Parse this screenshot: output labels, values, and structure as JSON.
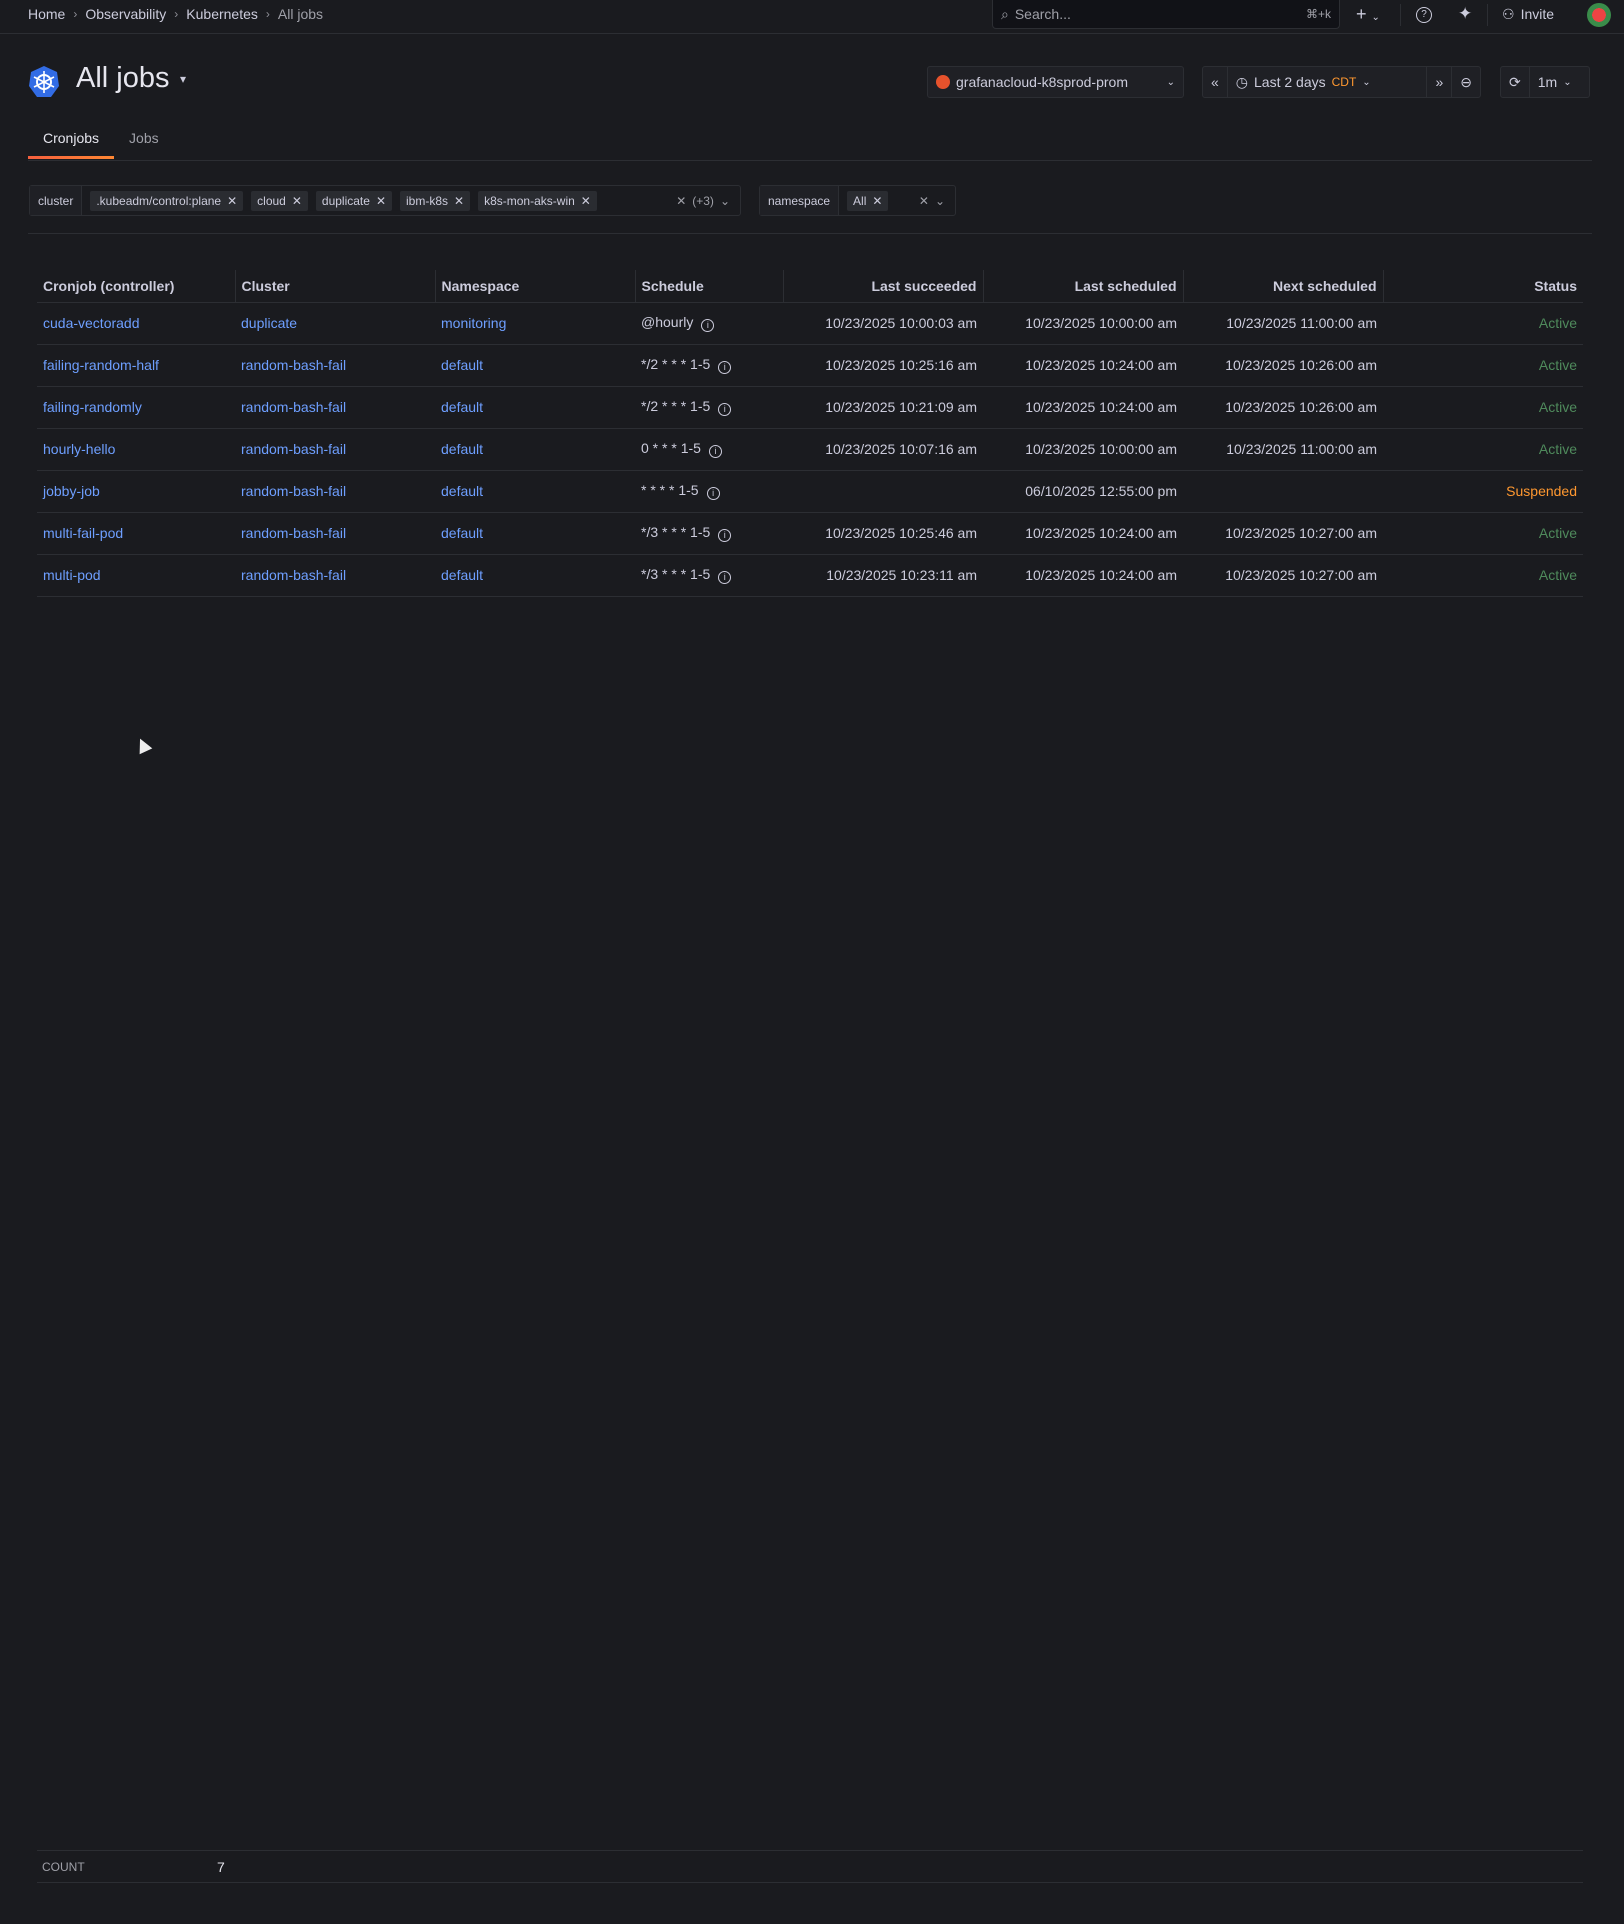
{
  "breadcrumb": [
    "Home",
    "Observability",
    "Kubernetes",
    "All jobs"
  ],
  "search": {
    "placeholder": "Search...",
    "shortcut": "⌘+k"
  },
  "topbar": {
    "add_label": "+",
    "invite_label": "Invite"
  },
  "page": {
    "title": "All jobs"
  },
  "datasource": "grafanacloud-k8sprod-prom",
  "time": {
    "range": "Last 2 days",
    "timezone": "CDT",
    "refresh": "1m"
  },
  "tabs": [
    {
      "label": "Cronjobs",
      "active": true
    },
    {
      "label": "Jobs",
      "active": false
    }
  ],
  "filters": {
    "cluster": {
      "label": "cluster",
      "values": [
        ".kubeadm/control:plane",
        "cloud",
        "duplicate",
        "ibm-k8s",
        "k8s-mon-aks-win"
      ],
      "more": "(+3)"
    },
    "namespace": {
      "label": "namespace",
      "values": [
        "All"
      ]
    }
  },
  "table": {
    "headers": [
      "Cronjob (controller)",
      "Cluster",
      "Namespace",
      "Schedule",
      "Last succeeded",
      "Last scheduled",
      "Next scheduled",
      "Status"
    ],
    "rows": [
      [
        "cuda-vectoradd",
        "duplicate",
        "monitoring",
        "@hourly",
        "10/23/2025 10:00:03 am",
        "10/23/2025 10:00:00 am",
        "10/23/2025 11:00:00 am",
        "Active"
      ],
      [
        "failing-random-half",
        "random-bash-fail",
        "default",
        "*/2 * * * 1-5",
        "10/23/2025 10:25:16 am",
        "10/23/2025 10:24:00 am",
        "10/23/2025 10:26:00 am",
        "Active"
      ],
      [
        "failing-randomly",
        "random-bash-fail",
        "default",
        "*/2 * * * 1-5",
        "10/23/2025 10:21:09 am",
        "10/23/2025 10:24:00 am",
        "10/23/2025 10:26:00 am",
        "Active"
      ],
      [
        "hourly-hello",
        "random-bash-fail",
        "default",
        "0 * * * 1-5",
        "10/23/2025 10:07:16 am",
        "10/23/2025 10:00:00 am",
        "10/23/2025 11:00:00 am",
        "Active"
      ],
      [
        "jobby-job",
        "random-bash-fail",
        "default",
        "* * * * 1-5",
        "",
        "06/10/2025 12:55:00 pm",
        "",
        "Suspended"
      ],
      [
        "multi-fail-pod",
        "random-bash-fail",
        "default",
        "*/3 * * * 1-5",
        "10/23/2025 10:25:46 am",
        "10/23/2025 10:24:00 am",
        "10/23/2025 10:27:00 am",
        "Active"
      ],
      [
        "multi-pod",
        "random-bash-fail",
        "default",
        "*/3 * * * 1-5",
        "10/23/2025 10:23:11 am",
        "10/23/2025 10:24:00 am",
        "10/23/2025 10:27:00 am",
        "Active"
      ]
    ]
  },
  "footer": {
    "label": "COUNT",
    "value": "7"
  },
  "colors": {
    "link": "#6e9fff",
    "active": "#4f8a5c",
    "suspended": "#ff9830",
    "accent": "#f55f3e",
    "background": "#1a1b1f"
  }
}
